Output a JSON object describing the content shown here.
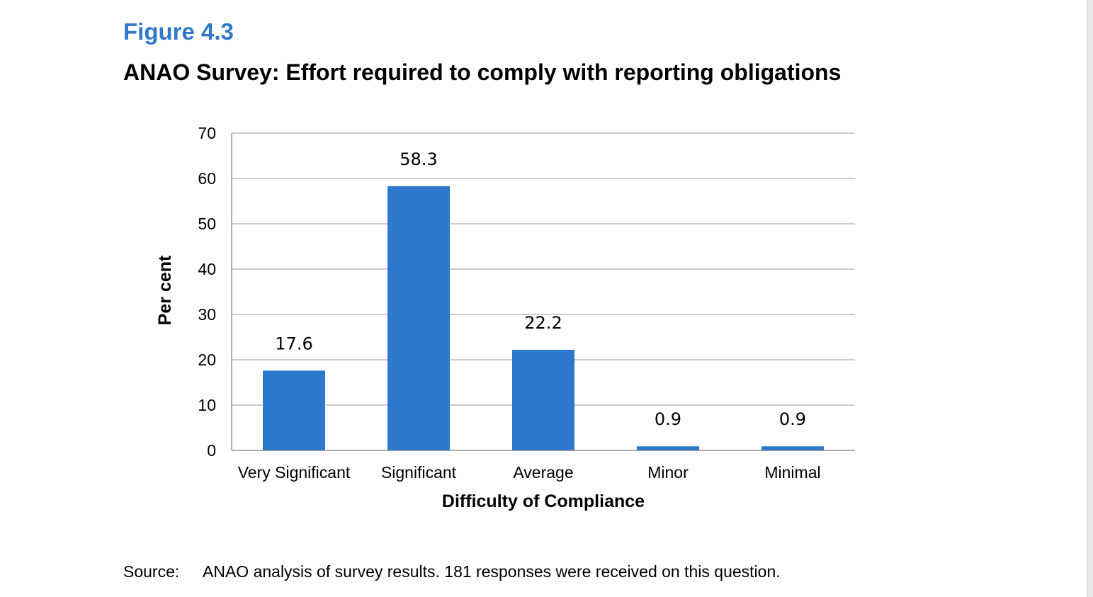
{
  "figure": {
    "label": "Figure 4.3",
    "title": "ANAO Survey: Effort required to comply with reporting obligations"
  },
  "chart_data": {
    "type": "bar",
    "categories": [
      "Very Significant",
      "Significant",
      "Average",
      "Minor",
      "Minimal"
    ],
    "values": [
      17.6,
      58.3,
      22.2,
      0.9,
      0.9
    ],
    "data_labels": [
      "17.6",
      "58.3",
      "22.2",
      "0.9",
      "0.9"
    ],
    "xlabel": "Difficulty of Compliance",
    "ylabel": "Per cent",
    "ylim": [
      0,
      70
    ],
    "yticks": [
      0,
      10,
      20,
      30,
      40,
      50,
      60,
      70
    ],
    "grid": true,
    "bar_color": "#2b78cc",
    "legend": "none"
  },
  "source": {
    "label": "Source:",
    "text": "ANAO analysis of survey results. 181 responses were received on this question."
  }
}
